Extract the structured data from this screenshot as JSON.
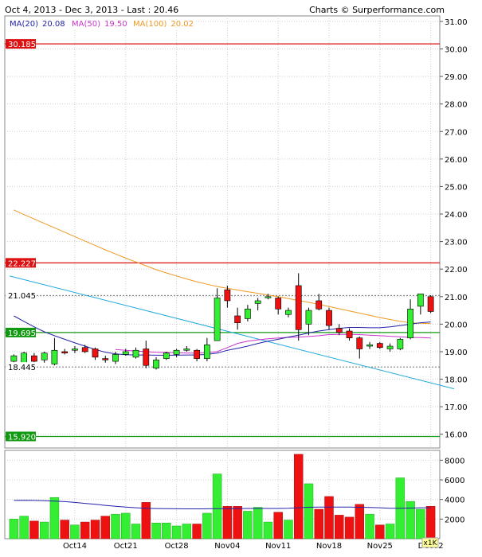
{
  "header": {
    "left": "Oct 4, 2013 - Dec 3, 2013 - Last : 20.46",
    "right": "Charts © Surperformance.com"
  },
  "legend": [
    {
      "label": "MA(20)",
      "value": "20.08",
      "color": "#2222aa"
    },
    {
      "label": "MA(50)",
      "value": "19.50",
      "color": "#cc33cc"
    },
    {
      "label": "MA(100)",
      "value": "20.02",
      "color": "#ee9922"
    }
  ],
  "chart_data": {
    "type": "candlestick",
    "price_axis": {
      "min": 15.5,
      "max": 31.2,
      "ticks": [
        "31.00",
        "30.00",
        "29.00",
        "28.00",
        "27.00",
        "26.00",
        "25.00",
        "24.00",
        "23.00",
        "22.00",
        "21.00",
        "20.00",
        "19.00",
        "18.00",
        "17.00",
        "16.00"
      ]
    },
    "volume_axis": {
      "min": 0,
      "max": 9000,
      "ticks": [
        "8000",
        "6000",
        "4000",
        "2000"
      ],
      "unit": "x1K"
    },
    "x_labels": [
      {
        "label": "Oct14",
        "index": 6
      },
      {
        "label": "Oct21",
        "index": 11
      },
      {
        "label": "Oct28",
        "index": 16
      },
      {
        "label": "Nov04",
        "index": 21
      },
      {
        "label": "Nov11",
        "index": 26
      },
      {
        "label": "Nov18",
        "index": 31
      },
      {
        "label": "Nov25",
        "index": 36
      },
      {
        "label": "Dec02",
        "index": 41
      }
    ],
    "levels": [
      {
        "value": 30.185,
        "label": "30.185",
        "color": "#dd1111",
        "style": "solid",
        "labelBg": "#dd1111",
        "labelColor": "#ffffff"
      },
      {
        "value": 22.227,
        "label": "22.227",
        "color": "#dd1111",
        "style": "solid",
        "labelBg": "#dd1111",
        "labelColor": "#ffffff"
      },
      {
        "value": 21.045,
        "label": "21.045",
        "color": "#444444",
        "style": "dashed",
        "labelBg": "#ffffff",
        "labelColor": "#000000"
      },
      {
        "value": 19.695,
        "label": "19.695",
        "color": "#119911",
        "style": "solid",
        "labelBg": "#119911",
        "labelColor": "#ffffff"
      },
      {
        "value": 18.445,
        "label": "18.445",
        "color": "#444444",
        "style": "dashed",
        "labelBg": "#ffffff",
        "labelColor": "#000000"
      },
      {
        "value": 15.92,
        "label": "15.920",
        "color": "#119911",
        "style": "solid",
        "labelBg": "#119911",
        "labelColor": "#ffffff"
      }
    ],
    "candles": [
      {
        "o": 18.65,
        "h": 18.9,
        "l": 18.55,
        "c": 18.85,
        "v": 2000
      },
      {
        "o": 18.6,
        "h": 19.0,
        "l": 18.5,
        "c": 18.95,
        "v": 2300
      },
      {
        "o": 18.85,
        "h": 18.95,
        "l": 18.6,
        "c": 18.65,
        "v": 1800
      },
      {
        "o": 18.7,
        "h": 19.0,
        "l": 18.6,
        "c": 18.95,
        "v": 1700
      },
      {
        "o": 18.55,
        "h": 19.5,
        "l": 18.5,
        "c": 19.05,
        "v": 4200
      },
      {
        "o": 19.0,
        "h": 19.1,
        "l": 18.9,
        "c": 18.95,
        "v": 1900
      },
      {
        "o": 19.05,
        "h": 19.2,
        "l": 18.95,
        "c": 19.1,
        "v": 1400
      },
      {
        "o": 19.15,
        "h": 19.25,
        "l": 18.95,
        "c": 19.0,
        "v": 1700
      },
      {
        "o": 19.1,
        "h": 19.15,
        "l": 18.7,
        "c": 18.8,
        "v": 1900
      },
      {
        "o": 18.75,
        "h": 18.85,
        "l": 18.6,
        "c": 18.7,
        "v": 2300
      },
      {
        "o": 18.65,
        "h": 19.0,
        "l": 18.55,
        "c": 18.9,
        "v": 2500
      },
      {
        "o": 18.9,
        "h": 19.1,
        "l": 18.85,
        "c": 19.0,
        "v": 2600
      },
      {
        "o": 18.8,
        "h": 19.15,
        "l": 18.75,
        "c": 19.05,
        "v": 1500
      },
      {
        "o": 19.1,
        "h": 19.4,
        "l": 18.4,
        "c": 18.5,
        "v": 3700
      },
      {
        "o": 18.4,
        "h": 18.8,
        "l": 18.35,
        "c": 18.7,
        "v": 1600
      },
      {
        "o": 18.75,
        "h": 19.0,
        "l": 18.7,
        "c": 18.95,
        "v": 1600
      },
      {
        "o": 18.9,
        "h": 19.1,
        "l": 18.8,
        "c": 19.05,
        "v": 1300
      },
      {
        "o": 19.05,
        "h": 19.2,
        "l": 19.0,
        "c": 19.1,
        "v": 1500
      },
      {
        "o": 19.05,
        "h": 19.1,
        "l": 18.65,
        "c": 18.75,
        "v": 1500
      },
      {
        "o": 18.75,
        "h": 19.5,
        "l": 18.65,
        "c": 19.25,
        "v": 2600
      },
      {
        "o": 19.4,
        "h": 21.3,
        "l": 19.4,
        "c": 20.95,
        "v": 6600
      },
      {
        "o": 21.25,
        "h": 21.4,
        "l": 20.6,
        "c": 20.85,
        "v": 3300
      },
      {
        "o": 20.3,
        "h": 20.6,
        "l": 19.8,
        "c": 20.05,
        "v": 3300
      },
      {
        "o": 20.2,
        "h": 20.7,
        "l": 20.1,
        "c": 20.55,
        "v": 2800
      },
      {
        "o": 20.75,
        "h": 20.95,
        "l": 20.5,
        "c": 20.85,
        "v": 3200
      },
      {
        "o": 21.0,
        "h": 21.1,
        "l": 20.9,
        "c": 21.0,
        "v": 1700
      },
      {
        "o": 20.95,
        "h": 21.0,
        "l": 20.35,
        "c": 20.55,
        "v": 2700
      },
      {
        "o": 20.35,
        "h": 20.6,
        "l": 20.25,
        "c": 20.5,
        "v": 1900
      },
      {
        "o": 21.4,
        "h": 21.85,
        "l": 19.4,
        "c": 19.8,
        "v": 8600
      },
      {
        "o": 20.0,
        "h": 20.6,
        "l": 19.6,
        "c": 20.5,
        "v": 5600
      },
      {
        "o": 20.85,
        "h": 21.1,
        "l": 20.5,
        "c": 20.55,
        "v": 3000
      },
      {
        "o": 20.5,
        "h": 20.6,
        "l": 19.8,
        "c": 19.95,
        "v": 4300
      },
      {
        "o": 19.85,
        "h": 20.0,
        "l": 19.6,
        "c": 19.7,
        "v": 2400
      },
      {
        "o": 19.75,
        "h": 19.85,
        "l": 19.4,
        "c": 19.5,
        "v": 2200
      },
      {
        "o": 19.5,
        "h": 19.55,
        "l": 18.75,
        "c": 19.1,
        "v": 3500
      },
      {
        "o": 19.2,
        "h": 19.35,
        "l": 19.1,
        "c": 19.25,
        "v": 2500
      },
      {
        "o": 19.3,
        "h": 19.35,
        "l": 19.1,
        "c": 19.15,
        "v": 1400
      },
      {
        "o": 19.1,
        "h": 19.3,
        "l": 19.0,
        "c": 19.2,
        "v": 1500
      },
      {
        "o": 19.1,
        "h": 19.5,
        "l": 19.05,
        "c": 19.45,
        "v": 6200
      },
      {
        "o": 19.5,
        "h": 20.9,
        "l": 19.45,
        "c": 20.55,
        "v": 3800
      },
      {
        "o": 20.65,
        "h": 21.1,
        "l": 20.35,
        "c": 21.1,
        "v": 3000
      },
      {
        "o": 21.0,
        "h": 21.05,
        "l": 20.4,
        "c": 20.46,
        "v": 3300
      }
    ],
    "ma20": [
      20.3,
      20.1,
      19.9,
      19.72,
      19.58,
      19.45,
      19.32,
      19.2,
      19.08,
      18.98,
      18.92,
      18.89,
      18.88,
      18.88,
      18.87,
      18.87,
      18.87,
      18.88,
      18.88,
      18.9,
      18.95,
      19.05,
      19.12,
      19.2,
      19.3,
      19.38,
      19.45,
      19.53,
      19.6,
      19.68,
      19.75,
      19.8,
      19.85,
      19.88,
      19.88,
      19.87,
      19.87,
      19.9,
      19.95,
      20.0,
      20.05,
      20.08
    ],
    "ma50": [
      null,
      null,
      null,
      null,
      null,
      null,
      null,
      null,
      null,
      null,
      19.08,
      19.05,
      19.02,
      19.0,
      18.98,
      18.97,
      18.96,
      18.95,
      18.95,
      18.96,
      19.0,
      19.15,
      19.3,
      19.38,
      19.43,
      19.47,
      19.5,
      19.52,
      19.53,
      19.55,
      19.58,
      19.62,
      19.63,
      19.63,
      19.62,
      19.6,
      19.58,
      19.56,
      19.54,
      19.52,
      19.51,
      19.5
    ],
    "ma100": [
      24.15,
      23.98,
      23.82,
      23.66,
      23.5,
      23.34,
      23.18,
      23.02,
      22.86,
      22.7,
      22.55,
      22.4,
      22.26,
      22.12,
      21.98,
      21.86,
      21.75,
      21.64,
      21.54,
      21.45,
      21.37,
      21.3,
      21.24,
      21.18,
      21.12,
      21.06,
      21.0,
      20.93,
      20.86,
      20.79,
      20.72,
      20.64,
      20.56,
      20.48,
      20.4,
      20.32,
      20.24,
      20.17,
      20.1,
      20.05,
      20.03,
      20.02
    ],
    "trendline": {
      "from": {
        "index": -0.4,
        "value": 21.75
      },
      "to": {
        "index": 43.3,
        "value": 17.65
      },
      "color": "#22aadd"
    },
    "volume_ma": [
      3900,
      3920,
      3900,
      3870,
      3830,
      3780,
      3700,
      3600,
      3500,
      3400,
      3300,
      3220,
      3150,
      3100,
      3070,
      3060,
      3050,
      3040,
      3040,
      3050,
      3060,
      3060,
      3070,
      3080,
      3080,
      3080,
      3080,
      3100,
      3150,
      3200,
      3220,
      3230,
      3230,
      3220,
      3200,
      3180,
      3150,
      3100,
      3100,
      3120,
      3150,
      3150
    ]
  }
}
